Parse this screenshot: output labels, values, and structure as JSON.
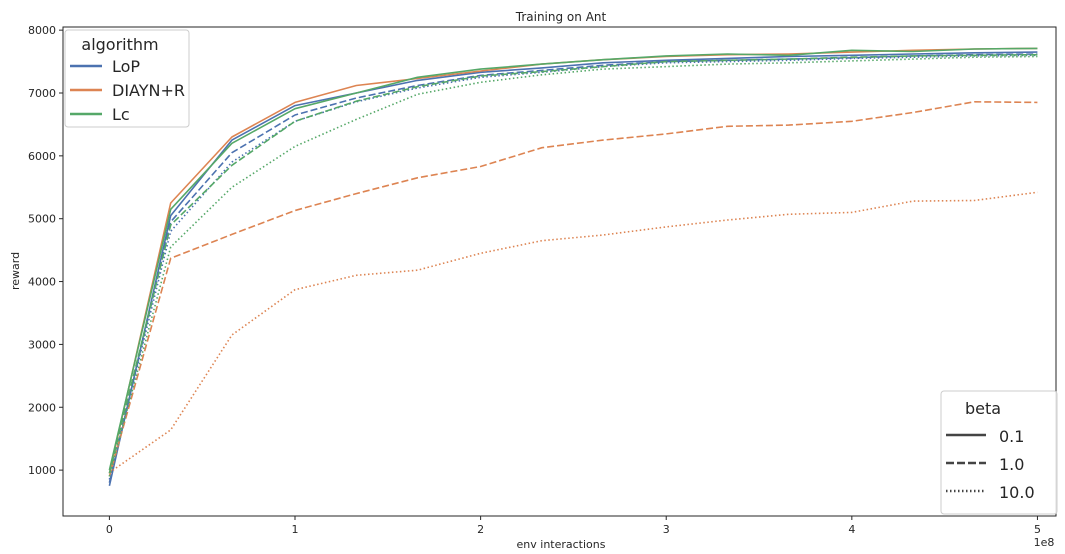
{
  "chart_data": {
    "type": "line",
    "title": "Training on Ant",
    "xlabel": "env interactions",
    "ylabel": "reward",
    "x_offset_label": "1e8",
    "xlim": [
      -0.25,
      5.1
    ],
    "ylim": [
      270,
      8050
    ],
    "xticks": [
      0,
      1,
      2,
      3,
      4,
      5
    ],
    "yticks": [
      1000,
      2000,
      3000,
      4000,
      5000,
      6000,
      7000,
      8000
    ],
    "x": [
      0,
      0.33,
      0.66,
      1.0,
      1.33,
      1.66,
      2.0,
      2.33,
      2.66,
      3.0,
      3.33,
      3.66,
      4.0,
      4.33,
      4.66,
      5.0
    ],
    "grid": false,
    "legends": [
      {
        "title": "algorithm",
        "placement": "top-left",
        "items": [
          {
            "label": "LoP",
            "color": "#4c72b0"
          },
          {
            "label": "DIAYN+R",
            "color": "#dd8452"
          },
          {
            "label": "Lc",
            "color": "#55a868"
          }
        ]
      },
      {
        "title": "beta",
        "placement": "bottom-right",
        "items": [
          {
            "label": "0.1",
            "dash": "solid"
          },
          {
            "label": "1.0",
            "dash": "dashed"
          },
          {
            "label": "10.0",
            "dash": "dotted"
          }
        ]
      }
    ],
    "series": [
      {
        "algorithm": "LoP",
        "beta": "0.1",
        "color": "#4c72b0",
        "dash": "solid",
        "values": [
          750,
          5050,
          6250,
          6800,
          7000,
          7200,
          7330,
          7400,
          7480,
          7520,
          7550,
          7580,
          7600,
          7620,
          7640,
          7650
        ]
      },
      {
        "algorithm": "LoP",
        "beta": "1.0",
        "color": "#4c72b0",
        "dash": "dashed",
        "values": [
          800,
          4950,
          6050,
          6650,
          6920,
          7120,
          7280,
          7360,
          7440,
          7500,
          7520,
          7540,
          7560,
          7590,
          7610,
          7620
        ]
      },
      {
        "algorithm": "LoP",
        "beta": "10.0",
        "color": "#4c72b0",
        "dash": "dotted",
        "values": [
          850,
          4800,
          5900,
          6550,
          6860,
          7080,
          7250,
          7330,
          7420,
          7480,
          7500,
          7520,
          7550,
          7570,
          7590,
          7600
        ]
      },
      {
        "algorithm": "DIAYN+R",
        "beta": "0.1",
        "color": "#dd8452",
        "dash": "solid",
        "values": [
          950,
          5250,
          6300,
          6850,
          7120,
          7230,
          7350,
          7460,
          7530,
          7580,
          7610,
          7620,
          7650,
          7680,
          7700,
          7710
        ]
      },
      {
        "algorithm": "DIAYN+R",
        "beta": "1.0",
        "color": "#dd8452",
        "dash": "dashed",
        "values": [
          900,
          4370,
          4750,
          5130,
          5400,
          5650,
          5830,
          6130,
          6250,
          6350,
          6470,
          6490,
          6550,
          6690,
          6860,
          6850
        ]
      },
      {
        "algorithm": "DIAYN+R",
        "beta": "10.0",
        "color": "#dd8452",
        "dash": "dotted",
        "values": [
          960,
          1640,
          3150,
          3870,
          4100,
          4180,
          4450,
          4650,
          4740,
          4870,
          4980,
          5070,
          5100,
          5280,
          5290,
          5420
        ]
      },
      {
        "algorithm": "Lc",
        "beta": "0.1",
        "color": "#55a868",
        "dash": "solid",
        "values": [
          1000,
          5150,
          6200,
          6750,
          7000,
          7250,
          7380,
          7460,
          7530,
          7590,
          7620,
          7600,
          7680,
          7660,
          7700,
          7710
        ]
      },
      {
        "algorithm": "Lc",
        "beta": "1.0",
        "color": "#55a868",
        "dash": "dashed",
        "values": [
          950,
          4900,
          5850,
          6550,
          6870,
          7100,
          7270,
          7340,
          7420,
          7500,
          7520,
          7540,
          7570,
          7590,
          7600,
          7610
        ]
      },
      {
        "algorithm": "Lc",
        "beta": "10.0",
        "color": "#55a868",
        "dash": "dotted",
        "values": [
          900,
          4550,
          5500,
          6150,
          6580,
          6980,
          7170,
          7290,
          7380,
          7420,
          7460,
          7480,
          7510,
          7540,
          7570,
          7580
        ]
      }
    ]
  }
}
